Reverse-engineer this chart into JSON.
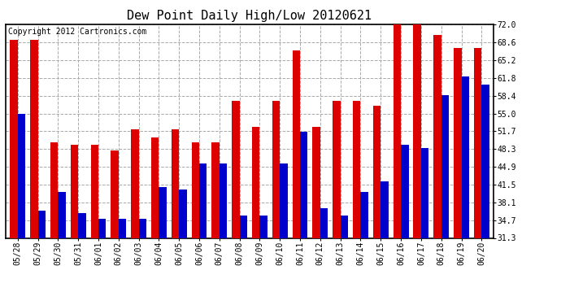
{
  "title": "Dew Point Daily High/Low 20120621",
  "copyright": "Copyright 2012 Cartronics.com",
  "dates": [
    "05/28",
    "05/29",
    "05/30",
    "05/31",
    "06/01",
    "06/02",
    "06/03",
    "06/04",
    "06/05",
    "06/06",
    "06/07",
    "06/08",
    "06/09",
    "06/10",
    "06/11",
    "06/12",
    "06/13",
    "06/14",
    "06/15",
    "06/16",
    "06/17",
    "06/18",
    "06/19",
    "06/20"
  ],
  "highs": [
    69.0,
    69.0,
    49.5,
    49.0,
    49.0,
    48.0,
    52.0,
    50.5,
    52.0,
    49.5,
    49.5,
    57.5,
    52.5,
    57.5,
    67.0,
    52.5,
    57.5,
    57.5,
    56.5,
    72.0,
    72.0,
    70.0,
    67.5,
    67.5
  ],
  "lows": [
    55.0,
    36.5,
    40.0,
    36.0,
    35.0,
    35.0,
    35.0,
    41.0,
    40.5,
    45.5,
    45.5,
    35.5,
    35.5,
    45.5,
    51.5,
    37.0,
    35.5,
    40.0,
    42.0,
    49.0,
    48.5,
    58.5,
    62.0,
    60.5
  ],
  "high_color": "#dd0000",
  "low_color": "#0000cc",
  "bg_color": "#ffffff",
  "plot_bg_color": "#ffffff",
  "grid_color": "#aaaaaa",
  "ylim_min": 31.3,
  "ylim_max": 72.0,
  "yticks": [
    31.3,
    34.7,
    38.1,
    41.5,
    44.9,
    48.3,
    51.7,
    55.0,
    58.4,
    61.8,
    65.2,
    68.6,
    72.0
  ],
  "bar_width": 0.38,
  "title_fontsize": 11,
  "tick_fontsize": 7,
  "copyright_fontsize": 7
}
